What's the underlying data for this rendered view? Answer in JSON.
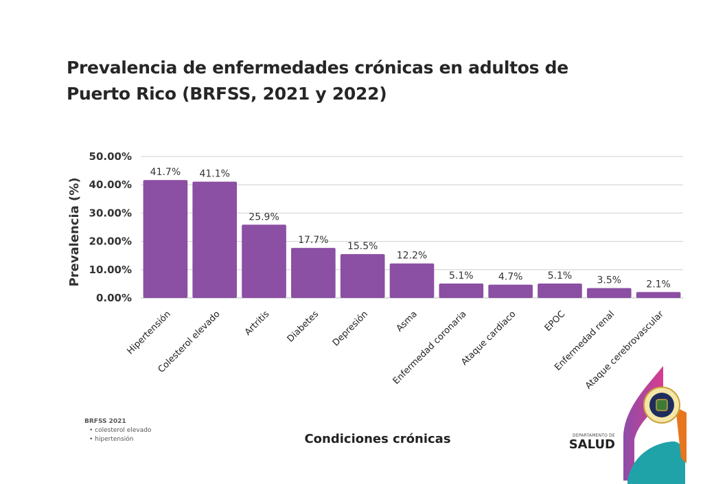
{
  "chart_data": {
    "type": "bar",
    "title": "Prevalencia de enfermedades crónicas en adultos de Puerto Rico (BRFSS, 2021 y 2022)",
    "xlabel": "Condiciones crónicas",
    "ylabel": "Prevalencia (%)",
    "ylim": [
      0,
      50
    ],
    "yticks": [
      0,
      10,
      20,
      30,
      40,
      50
    ],
    "ytick_labels": [
      "0.00%",
      "10.00%",
      "20.00%",
      "30.00%",
      "40.00%",
      "50.00%"
    ],
    "grid": true,
    "legend": "none",
    "bar_color": "#8B4FA3",
    "categories": [
      "Hipertensión",
      "Colesterol elevado",
      "Artritis",
      "Diabetes",
      "Depresión",
      "Asma",
      "Enfermedad coronaria",
      "Ataque cardiaco",
      "EPOC",
      "Enfermedad renal",
      "Ataque cerebrovascular"
    ],
    "values": [
      41.7,
      41.1,
      25.9,
      17.7,
      15.5,
      12.2,
      5.1,
      4.7,
      5.1,
      3.5,
      2.1
    ],
    "data_labels": [
      "41.7%",
      "41.1%",
      "25.9%",
      "17.7%",
      "15.5%",
      "12.2%",
      "5.1%",
      "4.7%",
      "5.1%",
      "3.5%",
      "2.1%"
    ]
  },
  "footnote": {
    "heading": "BRFSS 2021",
    "items": [
      "• colesterol  elevado",
      "• hipertensión"
    ]
  },
  "logo": {
    "department": "DEPARTAMENTO DE",
    "name": "SALUD",
    "colors": [
      "#D63C8E",
      "#8E4DA8",
      "#1FA3A8",
      "#E8761E"
    ]
  }
}
